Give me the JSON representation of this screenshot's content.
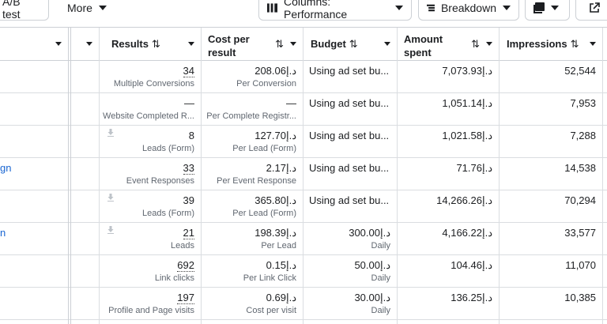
{
  "toolbar": {
    "ab_test_label": "A/B test",
    "more_label": "More",
    "columns_label": "Columns: Performance",
    "breakdown_label": "Breakdown"
  },
  "headers": {
    "results": "Results",
    "cost_line1": "Cost per",
    "cost_line2": "result",
    "budget": "Budget",
    "amount_line1": "Amount",
    "amount_line2": "spent",
    "impressions": "Impressions",
    "sort_glyph": "⇅"
  },
  "rows": [
    {
      "name": "",
      "results": "34",
      "results_underline": true,
      "results_type": "Multiple Conversions",
      "cost": "208.06د.إ",
      "cost_type": "Per Conversion",
      "budget": "Using ad set bu...",
      "budget_type": "",
      "spent": "7,073.93د.إ",
      "impressions": "52,544",
      "icon": false
    },
    {
      "name": "",
      "results": "—",
      "results_underline": false,
      "results_type": "Website Completed R...",
      "cost": "—",
      "cost_type": "Per Complete Registr...",
      "budget": "Using ad set bu...",
      "budget_type": "",
      "spent": "1,051.14د.إ",
      "impressions": "7,953",
      "icon": false
    },
    {
      "name": "",
      "results": "8",
      "results_underline": false,
      "results_type": "Leads (Form)",
      "cost": "127.70د.إ",
      "cost_type": "Per Lead (Form)",
      "budget": "Using ad set bu...",
      "budget_type": "",
      "spent": "1,021.58د.إ",
      "impressions": "7,288",
      "icon": true
    },
    {
      "name": "gn",
      "results": "33",
      "results_underline": true,
      "results_type": "Event Responses",
      "cost": "2.17د.إ",
      "cost_type": "Per Event Response",
      "budget": "Using ad set bu...",
      "budget_type": "",
      "spent": "71.76د.إ",
      "impressions": "14,538",
      "icon": false
    },
    {
      "name": "",
      "results": "39",
      "results_underline": false,
      "results_type": "Leads (Form)",
      "cost": "365.80د.إ",
      "cost_type": "Per Lead (Form)",
      "budget": "Using ad set bu...",
      "budget_type": "",
      "spent": "14,266.26د.إ",
      "impressions": "70,294",
      "icon": true
    },
    {
      "name": "n",
      "results": "21",
      "results_underline": true,
      "results_type": "Leads",
      "cost": "198.39د.إ",
      "cost_type": "Per Lead",
      "budget": "300.00د.إ",
      "budget_type": "Daily",
      "spent": "4,166.22د.إ",
      "impressions": "33,577",
      "icon": true
    },
    {
      "name": "",
      "results": "692",
      "results_underline": true,
      "results_type": "Link clicks",
      "cost": "0.15د.إ",
      "cost_type": "Per Link Click",
      "budget": "50.00د.إ",
      "budget_type": "Daily",
      "spent": "104.46د.إ",
      "impressions": "11,070",
      "icon": false
    },
    {
      "name": "",
      "results": "197",
      "results_underline": true,
      "results_type": "Profile and Page visits",
      "cost": "0.69د.إ",
      "cost_type": "Cost per visit",
      "budget": "30.00د.إ",
      "budget_type": "Daily",
      "spent": "136.25د.إ",
      "impressions": "10,385",
      "icon": false
    }
  ]
}
